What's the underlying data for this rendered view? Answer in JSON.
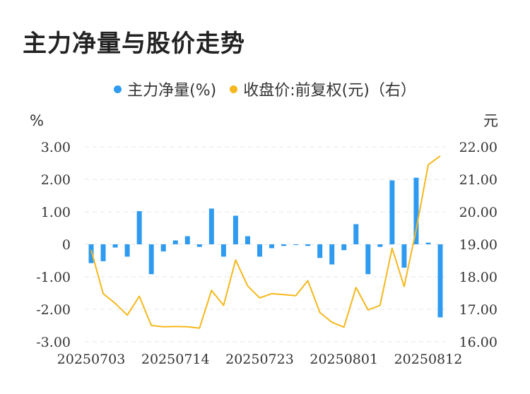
{
  "title": "主力净量与股价走势",
  "legend": [
    {
      "label": "主力净量(%)",
      "color": "#2e9bf0"
    },
    {
      "label": "收盘价:前复权(元)（右）",
      "color": "#f5b81c"
    }
  ],
  "chart_data": {
    "type": "bar+line",
    "left_unit": "%",
    "right_unit": "元",
    "left_ylim": [
      -3,
      3
    ],
    "right_ylim": [
      16,
      22
    ],
    "left_ticks": [
      "3.00",
      "2.00",
      "1.00",
      "0",
      "-1.00",
      "-2.00",
      "-3.00"
    ],
    "right_ticks": [
      "22.00",
      "21.00",
      "20.00",
      "19.00",
      "18.00",
      "17.00",
      "16.00"
    ],
    "x_labels": [
      "20250703",
      "20250714",
      "20250723",
      "20250801",
      "20250812"
    ],
    "categories": [
      "20250703",
      "20250704",
      "20250707",
      "20250708",
      "20250709",
      "20250710",
      "20250711",
      "20250714",
      "20250715",
      "20250716",
      "20250717",
      "20250718",
      "20250721",
      "20250722",
      "20250723",
      "20250724",
      "20250725",
      "20250728",
      "20250729",
      "20250730",
      "20250731",
      "20250801",
      "20250804",
      "20250805",
      "20250806",
      "20250807",
      "20250808",
      "20250811",
      "20250812",
      "20250813"
    ],
    "series": [
      {
        "name": "主力净量(%)",
        "type": "bar",
        "axis": "left",
        "values": [
          -0.58,
          -0.52,
          -0.1,
          -0.38,
          1.02,
          -0.92,
          -0.22,
          0.12,
          0.25,
          -0.08,
          1.1,
          -0.38,
          0.88,
          0.25,
          -0.38,
          -0.12,
          -0.05,
          0,
          -0.05,
          -0.42,
          -0.62,
          -0.18,
          0.62,
          -0.92,
          -0.08,
          1.97,
          -0.72,
          2.05,
          0.05,
          -2.25
        ]
      },
      {
        "name": "收盘价:前复权(元)（右）",
        "type": "line",
        "axis": "right",
        "values": [
          18.82,
          17.48,
          17.18,
          16.82,
          17.4,
          16.5,
          16.46,
          16.47,
          16.46,
          16.42,
          17.58,
          17.12,
          18.52,
          17.72,
          17.35,
          17.48,
          17.45,
          17.42,
          17.88,
          16.9,
          16.6,
          16.45,
          17.67,
          16.98,
          17.12,
          18.88,
          17.7,
          19.45,
          21.45,
          21.72
        ]
      }
    ],
    "grid": true
  }
}
